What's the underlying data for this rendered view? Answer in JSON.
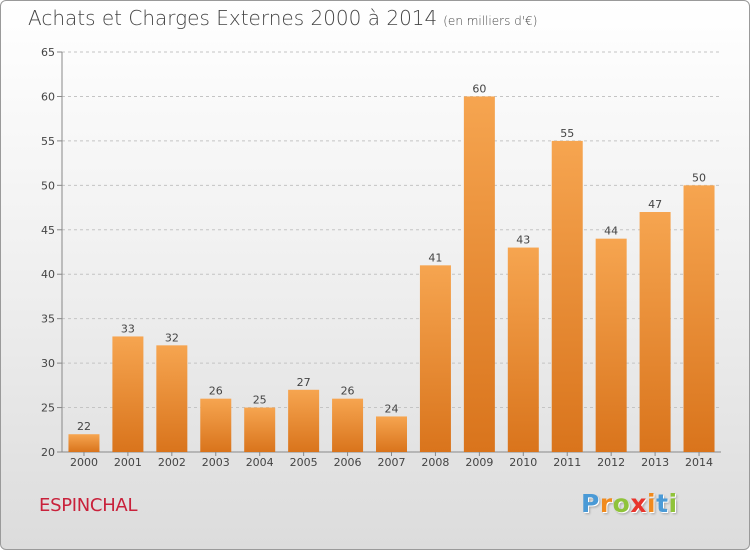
{
  "header": {
    "title": "Achats et Charges Externes 2000 à 2014",
    "subtitle": "(en milliers d'€)"
  },
  "footer": {
    "commune": "ESPINCHAL",
    "logo_text": "Proxiti"
  },
  "colors": {
    "bar_top": "#f6a550",
    "bar_bottom": "#d9741c",
    "commune": "#c9213b",
    "logo_letters": [
      "#4a9ad6",
      "#f08a1d",
      "#8fc33a",
      "#e8342c",
      "#f08a1d",
      "#4a9ad6",
      "#8fc33a"
    ]
  },
  "chart_data": {
    "type": "bar",
    "categories": [
      "2000",
      "2001",
      "2002",
      "2003",
      "2004",
      "2005",
      "2006",
      "2007",
      "2008",
      "2009",
      "2010",
      "2011",
      "2012",
      "2013",
      "2014"
    ],
    "values": [
      22,
      33,
      32,
      26,
      25,
      27,
      26,
      24,
      41,
      60,
      43,
      55,
      44,
      47,
      50
    ],
    "ylim": [
      20,
      65
    ],
    "yticks": [
      20,
      25,
      30,
      35,
      40,
      45,
      50,
      55,
      60,
      65
    ],
    "grid": "horizontal dashed",
    "data_labels": true
  }
}
